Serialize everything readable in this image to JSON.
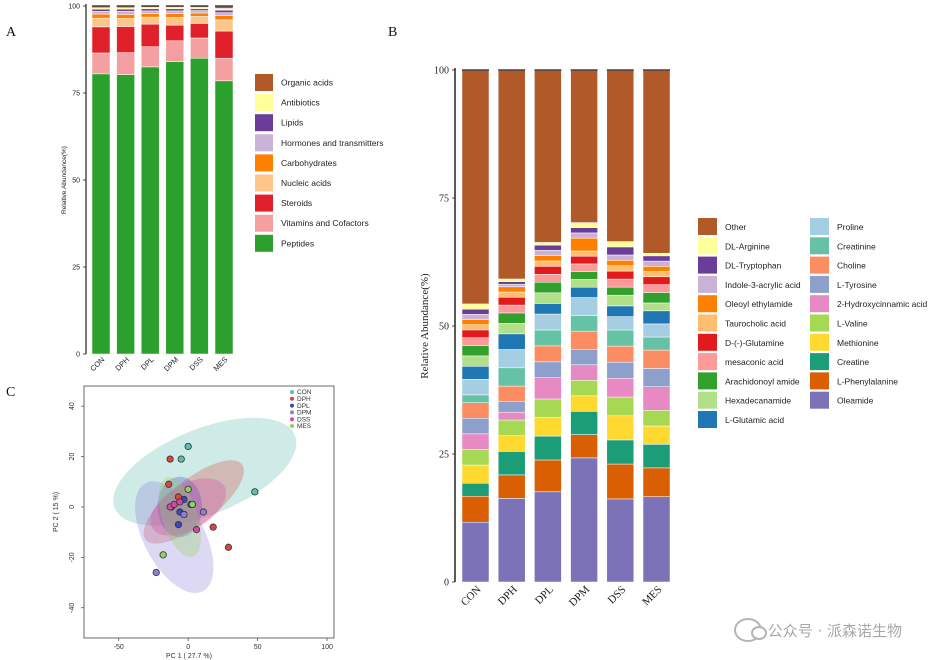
{
  "panels": {
    "A": "A",
    "B": "B",
    "C": "C"
  },
  "watermark": "公众号 · 派森诺生物",
  "chart_data": [
    {
      "panel": "A",
      "type": "bar",
      "stacked": true,
      "ylabel": "Relative Abundance(%)",
      "ylim": [
        0,
        100
      ],
      "yticks": [
        0,
        25,
        50,
        75,
        100
      ],
      "categories": [
        "CON",
        "DPH",
        "DPL",
        "DPM",
        "DSS",
        "MES"
      ],
      "series": [
        {
          "name": "Peptides",
          "color": "#2ca02c",
          "values": [
            80.5,
            80.3,
            82.5,
            84.0,
            85.0,
            78.5
          ]
        },
        {
          "name": "Vitamins and Cofactors",
          "color": "#f4a0a0",
          "values": [
            6.0,
            6.3,
            5.8,
            6.0,
            5.8,
            6.5
          ]
        },
        {
          "name": "Steroids",
          "color": "#e0202a",
          "values": [
            7.5,
            7.5,
            6.5,
            4.5,
            4.2,
            7.8
          ]
        },
        {
          "name": "Nucleic acids",
          "color": "#fdc58a",
          "values": [
            2.5,
            2.3,
            2.0,
            2.2,
            2.0,
            3.2
          ]
        },
        {
          "name": "Carbohydrates",
          "color": "#ff8000",
          "values": [
            1.2,
            1.2,
            1.0,
            1.1,
            1.0,
            1.3
          ]
        },
        {
          "name": "Hormones and transmitters",
          "color": "#c9b3d8",
          "values": [
            0.8,
            0.9,
            0.8,
            0.8,
            0.7,
            0.8
          ]
        },
        {
          "name": "Lipids",
          "color": "#6a3d9a",
          "values": [
            0.6,
            0.6,
            0.6,
            0.6,
            0.5,
            0.7
          ]
        },
        {
          "name": "Antibiotics",
          "color": "#ffff99",
          "values": [
            0.4,
            0.4,
            0.4,
            0.4,
            0.4,
            0.5
          ]
        },
        {
          "name": "Organic acids",
          "color": "#b15928",
          "values": [
            0.5,
            0.5,
            0.4,
            0.4,
            0.4,
            0.7
          ]
        }
      ],
      "legend_order": [
        "Organic acids",
        "Antibiotics",
        "Lipids",
        "Hormones and transmitters",
        "Carbohydrates",
        "Nucleic acids",
        "Steroids",
        "Vitamins and Cofactors",
        "Peptides"
      ],
      "legend": "right"
    },
    {
      "panel": "B",
      "type": "bar",
      "stacked": true,
      "ylabel": "Relative Abundance(%)",
      "ylim": [
        0,
        100
      ],
      "yticks": [
        0,
        25,
        50,
        75,
        100
      ],
      "categories": [
        "CON",
        "DPH",
        "DPL",
        "DPM",
        "DSS",
        "MES"
      ],
      "series": [
        {
          "name": "Oleamide",
          "color": "#7b72b8",
          "values": [
            11.5,
            16.0,
            17.0,
            24.0,
            15.5,
            16.3
          ]
        },
        {
          "name": "L-Phenylalanine",
          "color": "#d95f02",
          "values": [
            5.0,
            4.5,
            6.0,
            4.5,
            6.5,
            5.5
          ]
        },
        {
          "name": "Creatine",
          "color": "#1b9e77",
          "values": [
            2.5,
            4.5,
            4.5,
            4.5,
            4.5,
            4.5
          ]
        },
        {
          "name": "Methionine",
          "color": "#ffd92f",
          "values": [
            3.5,
            3.0,
            3.5,
            3.0,
            4.5,
            3.5
          ]
        },
        {
          "name": "L-Valine",
          "color": "#a6d854",
          "values": [
            3.0,
            3.0,
            3.5,
            3.0,
            3.5,
            3.0
          ]
        },
        {
          "name": "2-Hydroxycinnamic acid",
          "color": "#e78ac3",
          "values": [
            3.0,
            1.5,
            4.0,
            3.0,
            3.5,
            4.5
          ]
        },
        {
          "name": "L-Tyrosine",
          "color": "#8da0cb",
          "values": [
            3.0,
            2.0,
            3.0,
            3.0,
            3.0,
            3.5
          ]
        },
        {
          "name": "Choline",
          "color": "#fc8d62",
          "values": [
            3.0,
            3.0,
            3.0,
            3.5,
            3.0,
            3.5
          ]
        },
        {
          "name": "Creatinine",
          "color": "#66c2a5",
          "values": [
            1.5,
            3.5,
            3.0,
            3.0,
            3.0,
            2.5
          ]
        },
        {
          "name": "Proline",
          "color": "#a6cee3",
          "values": [
            3.0,
            3.5,
            3.0,
            3.5,
            2.5,
            2.5
          ]
        },
        {
          "name": "L-Glutamic acid",
          "color": "#1f78b4",
          "values": [
            2.5,
            3.0,
            2.0,
            2.0,
            2.0,
            2.5
          ]
        },
        {
          "name": "Hexadecanamide",
          "color": "#b2df8a",
          "values": [
            2.0,
            2.0,
            2.0,
            1.5,
            2.0,
            1.5
          ]
        },
        {
          "name": "Arachidonoyl amide",
          "color": "#33a02c",
          "values": [
            2.0,
            2.0,
            2.0,
            1.5,
            1.5,
            2.0
          ]
        },
        {
          "name": "mesaconic acid",
          "color": "#fb9a99",
          "values": [
            1.5,
            1.5,
            1.5,
            1.5,
            1.5,
            1.5
          ]
        },
        {
          "name": "D-(-)-Glutamine",
          "color": "#e31a1c",
          "values": [
            1.5,
            1.5,
            1.5,
            1.5,
            1.5,
            1.5
          ]
        },
        {
          "name": "Taurocholic acid",
          "color": "#fdbf6f",
          "values": [
            1.0,
            1.0,
            1.0,
            1.0,
            1.0,
            1.0
          ]
        },
        {
          "name": "Oleoyl ethylamide",
          "color": "#ff7f00",
          "values": [
            1.0,
            1.0,
            1.0,
            2.5,
            1.0,
            1.0
          ]
        },
        {
          "name": "Indole-3-acrylic acid",
          "color": "#cab2d6",
          "values": [
            1.0,
            0.5,
            1.0,
            1.0,
            1.0,
            1.0
          ]
        },
        {
          "name": "DL-Tryptophan",
          "color": "#6a3d9a",
          "values": [
            1.0,
            0.5,
            1.0,
            1.0,
            1.5,
            1.0
          ]
        },
        {
          "name": "DL-Arginine",
          "color": "#ffff99",
          "values": [
            1.0,
            0.5,
            0.5,
            1.0,
            1.0,
            0.5
          ]
        },
        {
          "name": "Other",
          "color": "#b15928",
          "values": [
            45.0,
            40.0,
            32.5,
            29.5,
            32.0,
            35.0
          ]
        }
      ],
      "legend_columns": [
        [
          "Other",
          "DL-Arginine",
          "DL-Tryptophan",
          "Indole-3-acrylic acid",
          "Oleoyl ethylamide",
          "Taurocholic acid",
          "D-(-)-Glutamine",
          "mesaconic acid",
          "Arachidonoyl amide",
          "Hexadecanamide",
          "L-Glutamic acid"
        ],
        [
          "Proline",
          "Creatinine",
          "Choline",
          "L-Tyrosine",
          "2-Hydroxycinnamic acid",
          "L-Valine",
          "Methionine",
          "Creatine",
          "L-Phenylalanine",
          "Oleamide"
        ]
      ],
      "legend": "right"
    },
    {
      "panel": "C",
      "type": "scatter",
      "xlabel": "PC 1 ( 27.7 %)",
      "ylabel": "PC 2 ( 15 %)",
      "xlim": [
        -75,
        105
      ],
      "ylim": [
        -52,
        48
      ],
      "xticks": [
        -50,
        0,
        50,
        100
      ],
      "yticks": [
        -40,
        -20,
        0,
        20,
        40
      ],
      "legend": "top-right",
      "groups": [
        {
          "name": "CON",
          "color": "#5fbcb0",
          "points": [
            [
              0,
              24
            ],
            [
              -5,
              19
            ],
            [
              48,
              6
            ]
          ],
          "ellipse": {
            "cx": 12,
            "cy": 14,
            "rx": 70,
            "ry": 17,
            "angle": -22
          }
        },
        {
          "name": "DPH",
          "color": "#d84545",
          "points": [
            [
              -13,
              19
            ],
            [
              -14,
              9
            ],
            [
              -7,
              4
            ],
            [
              18,
              -8
            ],
            [
              29,
              -16
            ]
          ],
          "ellipse": {
            "cx": 4,
            "cy": 2,
            "rx": 44,
            "ry": 9,
            "angle": -38
          }
        },
        {
          "name": "DPL",
          "color": "#3a46c6",
          "points": [
            [
              -12,
              0
            ],
            [
              -6,
              -2
            ],
            [
              -3,
              3
            ],
            [
              2,
              1
            ],
            [
              -7,
              -7
            ]
          ],
          "ellipse": {
            "cx": -6,
            "cy": 0,
            "rx": 16,
            "ry": 12,
            "angle": 0
          }
        },
        {
          "name": "DPM",
          "color": "#8f7fd6",
          "points": [
            [
              -23,
              -26
            ],
            [
              11,
              -2
            ],
            [
              3,
              1
            ],
            [
              -3,
              -3
            ]
          ],
          "ellipse": {
            "cx": -10,
            "cy": -12,
            "rx": 44,
            "ry": 12,
            "angle": 62
          }
        },
        {
          "name": "DSS",
          "color": "#d04aa4",
          "points": [
            [
              -13,
              0
            ],
            [
              -10,
              1
            ],
            [
              6,
              -9
            ],
            [
              -6,
              2
            ]
          ],
          "ellipse": {
            "cx": 0,
            "cy": 0,
            "rx": 30,
            "ry": 9,
            "angle": -30
          }
        },
        {
          "name": "MES",
          "color": "#8ed45a",
          "points": [
            [
              -18,
              -19
            ],
            [
              0,
              7
            ],
            [
              3,
              1
            ]
          ],
          "ellipse": {
            "cx": -6,
            "cy": -4,
            "rx": 30,
            "ry": 7,
            "angle": 72
          }
        }
      ]
    }
  ]
}
